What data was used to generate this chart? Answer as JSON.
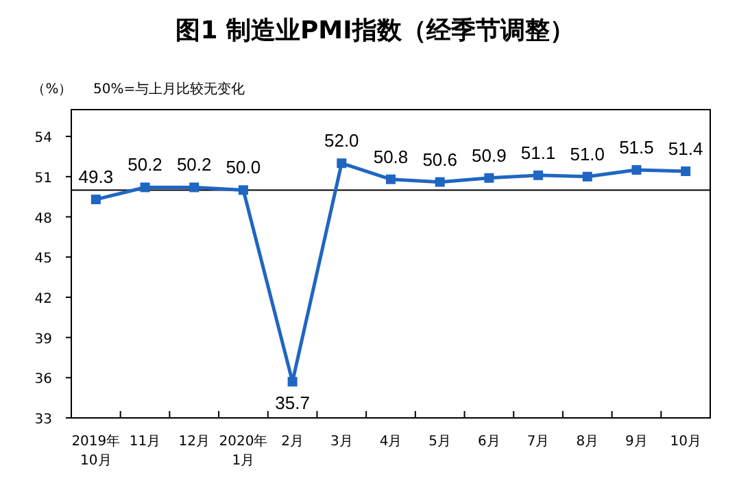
{
  "chart_data": {
    "type": "line",
    "title": "图1 制造业PMI指数（经季节调整）",
    "ylabel": "（%）",
    "annotations": [
      "50%=与上月比较无变化"
    ],
    "categories": [
      "2019年\n10月",
      "11月",
      "12月",
      "2020年\n1月",
      "2月",
      "3月",
      "4月",
      "5月",
      "6月",
      "7月",
      "8月",
      "9月",
      "10月"
    ],
    "series": [
      {
        "color": "#1f66c2",
        "values": [
          49.3,
          50.2,
          50.2,
          50.0,
          35.7,
          52.0,
          50.8,
          50.6,
          50.9,
          51.1,
          51.0,
          51.5,
          51.4
        ],
        "value_labels": [
          "49.3",
          "50.2",
          "50.2",
          "50.0",
          "35.7",
          "52.0",
          "50.8",
          "50.6",
          "50.9",
          "51.1",
          "51.0",
          "51.5",
          "51.4"
        ]
      }
    ],
    "ylim": [
      33,
      56
    ],
    "yticks": [
      33,
      36,
      39,
      42,
      45,
      48,
      51,
      54
    ],
    "ref_lines": [
      {
        "axis": "y",
        "value": 50,
        "color": "#000000"
      }
    ],
    "marker": "square"
  }
}
